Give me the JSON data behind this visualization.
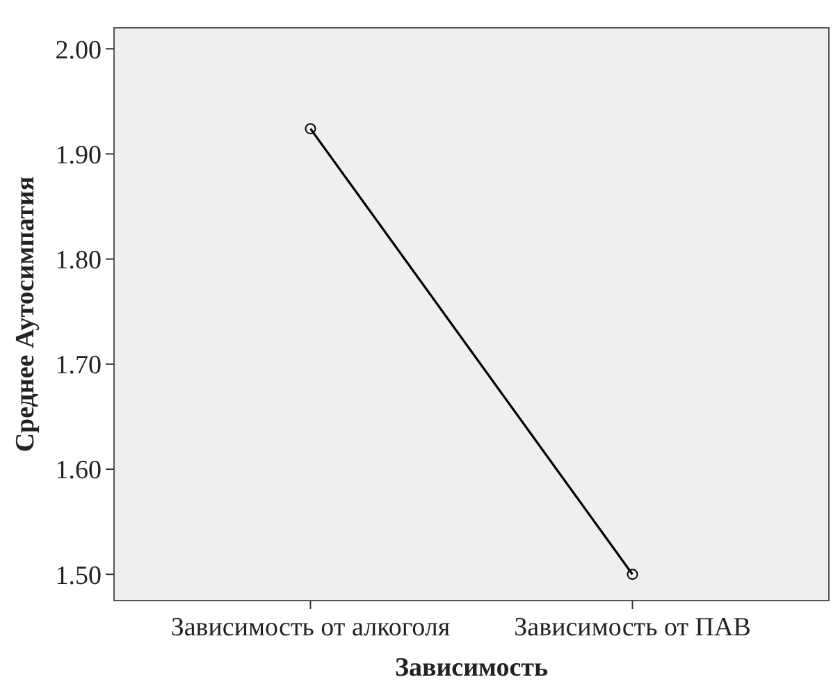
{
  "chart_data": {
    "type": "line",
    "xlabel": "Зависимость",
    "ylabel": "Среднее Аутосимпатия",
    "categories": [
      "Зависимость от алкоголя",
      "Зависимость от ПАВ"
    ],
    "series": [
      {
        "color": "#000000",
        "values": [
          1.924,
          1.5
        ]
      }
    ],
    "ylim": [
      1.475,
      2.02
    ],
    "yticks": [
      {
        "value": 1.5,
        "label": "1.50"
      },
      {
        "value": 1.6,
        "label": "1.60"
      },
      {
        "value": 1.7,
        "label": "1.70"
      },
      {
        "value": 1.8,
        "label": "1.80"
      },
      {
        "value": 1.9,
        "label": "1.90"
      },
      {
        "value": 2.0,
        "label": "2.00"
      }
    ],
    "marker": "circle",
    "line_style": "solid"
  }
}
